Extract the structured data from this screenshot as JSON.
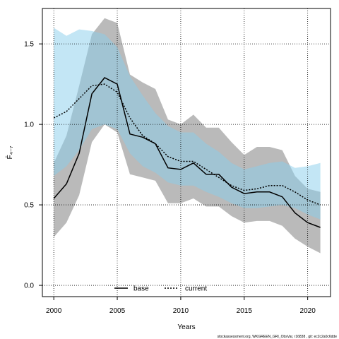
{
  "chart_data": {
    "type": "line",
    "x": [
      2000,
      2001,
      2002,
      2003,
      2004,
      2005,
      2006,
      2007,
      2008,
      2009,
      2010,
      2011,
      2012,
      2013,
      2014,
      2015,
      2016,
      2017,
      2018,
      2019,
      2020,
      2021
    ],
    "series": [
      {
        "name": "base",
        "color": "#000000",
        "band_color": "#8c8c8c",
        "line_style": "solid",
        "values": [
          0.54,
          0.63,
          0.82,
          1.19,
          1.29,
          1.25,
          0.94,
          0.92,
          0.88,
          0.73,
          0.72,
          0.76,
          0.69,
          0.69,
          0.61,
          0.57,
          0.58,
          0.58,
          0.55,
          0.45,
          0.39,
          0.36
        ],
        "lower": [
          0.3,
          0.39,
          0.56,
          0.89,
          1.0,
          0.95,
          0.69,
          0.67,
          0.65,
          0.51,
          0.51,
          0.54,
          0.49,
          0.49,
          0.43,
          0.39,
          0.4,
          0.4,
          0.37,
          0.29,
          0.24,
          0.2
        ],
        "upper": [
          0.76,
          0.93,
          1.24,
          1.56,
          1.66,
          1.63,
          1.31,
          1.26,
          1.22,
          1.03,
          1.0,
          1.06,
          0.98,
          0.98,
          0.89,
          0.81,
          0.86,
          0.86,
          0.84,
          0.68,
          0.6,
          0.58
        ]
      },
      {
        "name": "current",
        "color": "#000000",
        "band_color": "#87ceeb",
        "line_style": "dotted",
        "values": [
          1.04,
          1.08,
          1.16,
          1.24,
          1.25,
          1.2,
          1.04,
          0.93,
          0.88,
          0.8,
          0.77,
          0.77,
          0.72,
          0.67,
          0.62,
          0.59,
          0.6,
          0.62,
          0.62,
          0.58,
          0.53,
          0.5
        ],
        "lower": [
          0.68,
          0.74,
          0.84,
          0.97,
          1.0,
          0.97,
          0.82,
          0.74,
          0.7,
          0.64,
          0.62,
          0.62,
          0.58,
          0.55,
          0.51,
          0.48,
          0.48,
          0.49,
          0.5,
          0.48,
          0.44,
          0.41
        ],
        "upper": [
          1.6,
          1.55,
          1.59,
          1.58,
          1.56,
          1.48,
          1.3,
          1.18,
          1.07,
          0.99,
          0.95,
          0.95,
          0.88,
          0.83,
          0.76,
          0.72,
          0.74,
          0.76,
          0.77,
          0.73,
          0.74,
          0.76
        ]
      }
    ],
    "xlabel": "Years",
    "ylabel": "F̄₄₋₇",
    "xlim": [
      1999.1,
      2021.8
    ],
    "ylim": [
      -0.07,
      1.72
    ],
    "xticks": [
      2000,
      2005,
      2010,
      2015,
      2020
    ],
    "xtick_labels": [
      "2000",
      "2005",
      "2010",
      "2015",
      "2020"
    ],
    "yticks": [
      0,
      0.5,
      1.0,
      1.5
    ],
    "ytick_labels": [
      "0.0",
      "0.5",
      "1.0",
      "1.5"
    ],
    "grid": true,
    "legend": {
      "position": "bottom-center",
      "entries": [
        "base",
        "current"
      ]
    },
    "footer": "stockassessment.org,  WKGREEN_GRI_ObsVar,  r16838  ,  git:  ec2c2a0c6dde"
  }
}
